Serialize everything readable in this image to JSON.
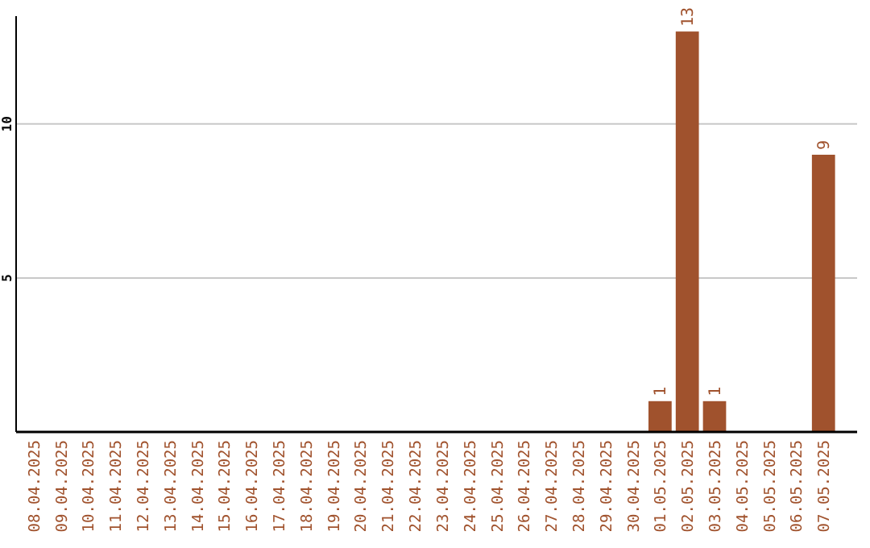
{
  "chart_data": {
    "type": "bar",
    "categories": [
      "08.04.2025",
      "09.04.2025",
      "10.04.2025",
      "11.04.2025",
      "12.04.2025",
      "13.04.2025",
      "14.04.2025",
      "15.04.2025",
      "16.04.2025",
      "17.04.2025",
      "18.04.2025",
      "19.04.2025",
      "20.04.2025",
      "21.04.2025",
      "22.04.2025",
      "23.04.2025",
      "24.04.2025",
      "25.04.2025",
      "26.04.2025",
      "27.04.2025",
      "28.04.2025",
      "29.04.2025",
      "30.04.2025",
      "01.05.2025",
      "02.05.2025",
      "03.05.2025",
      "04.05.2025",
      "05.05.2025",
      "06.05.2025",
      "07.05.2025"
    ],
    "values": [
      0,
      0,
      0,
      0,
      0,
      0,
      0,
      0,
      0,
      0,
      0,
      0,
      0,
      0,
      0,
      0,
      0,
      0,
      0,
      0,
      0,
      0,
      0,
      1,
      13,
      1,
      0,
      0,
      0,
      9
    ],
    "value_labels": [
      null,
      null,
      null,
      null,
      null,
      null,
      null,
      null,
      null,
      null,
      null,
      null,
      null,
      null,
      null,
      null,
      null,
      null,
      null,
      null,
      null,
      null,
      null,
      "1",
      "13",
      "1",
      null,
      null,
      null,
      "9"
    ],
    "color": "#a0522d",
    "ylim": [
      0,
      13.5
    ],
    "yticks": [
      5,
      10
    ],
    "grid": "y"
  }
}
